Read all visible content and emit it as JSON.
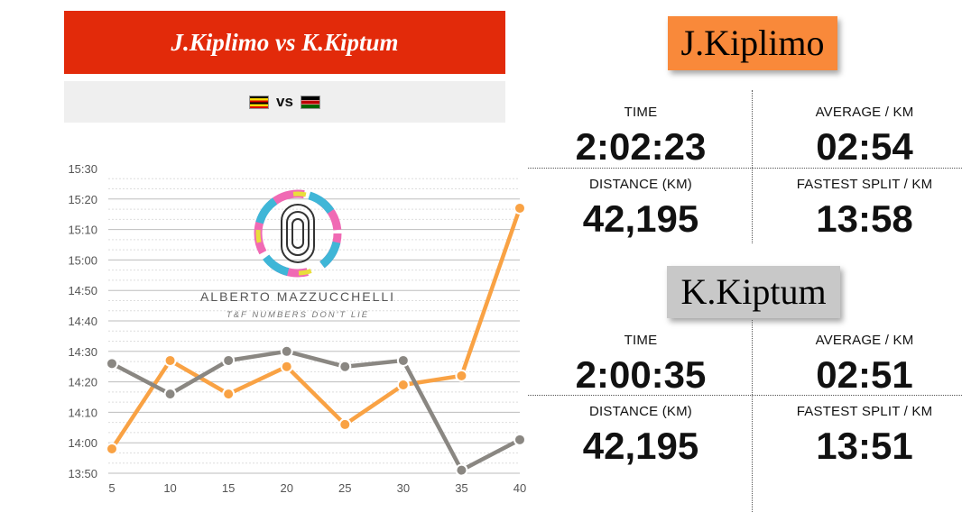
{
  "header": {
    "title": "J.Kiplimo vs K.Kiptum",
    "vs": "vs"
  },
  "flags": [
    "uganda-flag",
    "kenya-flag"
  ],
  "logo": {
    "name": "ALBERTO MAZZUCCHELLI",
    "tagline": "T&F NUMBERS DON'T LIE"
  },
  "colors": {
    "title_bg": "#e22a0a",
    "kiplimo": "#f9a244",
    "kiptum": "#8a8782",
    "kiplimo_tag": "#f9893a",
    "kiptum_tag": "#c8c8c8"
  },
  "athletes": [
    {
      "name": "J.Kiplimo",
      "stats": [
        {
          "label": "TIME",
          "value": "2:02:23"
        },
        {
          "label": "AVERAGE / KM",
          "value": "02:54"
        },
        {
          "label": "DISTANCE (KM)",
          "value": "42,195"
        },
        {
          "label": "FASTEST SPLIT / KM",
          "value": "13:58"
        }
      ]
    },
    {
      "name": "K.Kiptum",
      "stats": [
        {
          "label": "TIME",
          "value": "2:00:35"
        },
        {
          "label": "AVERAGE / KM",
          "value": "02:51"
        },
        {
          "label": "DISTANCE (KM)",
          "value": "42,195"
        },
        {
          "label": "FASTEST SPLIT / KM",
          "value": "13:51"
        }
      ]
    }
  ],
  "chart_data": {
    "type": "line",
    "x": [
      5,
      10,
      15,
      20,
      25,
      30,
      35,
      40
    ],
    "y_tick_labels": [
      "13:50",
      "14:00",
      "14:10",
      "14:20",
      "14:30",
      "14:40",
      "14:50",
      "15:00",
      "15:10",
      "15:20",
      "15:30"
    ],
    "ylim": [
      "13:50",
      "15:30"
    ],
    "grid": true,
    "series": [
      {
        "name": "J.Kiplimo",
        "color": "#f9a244",
        "values": [
          "13:58",
          "14:27",
          "14:16",
          "14:25",
          "14:06",
          "14:19",
          "14:22",
          "15:17"
        ]
      },
      {
        "name": "K.Kiptum",
        "color": "#8a8782",
        "values": [
          "14:26",
          "14:16",
          "14:27",
          "14:30",
          "14:25",
          "14:27",
          "13:51",
          "14:01"
        ]
      }
    ]
  }
}
